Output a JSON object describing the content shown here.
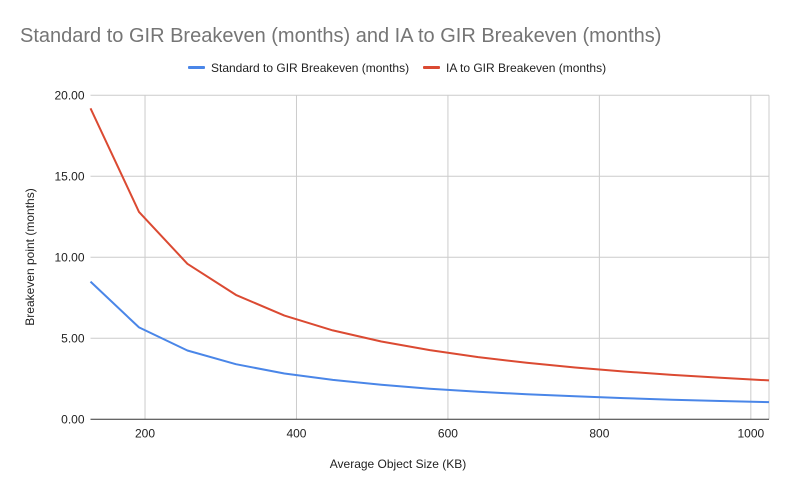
{
  "chart_data": {
    "type": "line",
    "title": "Standard to GIR Breakeven (months) and IA to GIR Breakeven (months)",
    "xlabel": "Average Object Size (KB)",
    "ylabel": "Breakeven point (months)",
    "xlim": [
      128,
      1024
    ],
    "ylim": [
      0,
      20
    ],
    "x_ticks": [
      200,
      400,
      600,
      800,
      1000
    ],
    "y_ticks": [
      "0.00",
      "5.00",
      "10.00",
      "15.00",
      "20.00"
    ],
    "grid": true,
    "legend_position": "top",
    "x": [
      128,
      192,
      256,
      320,
      384,
      448,
      512,
      576,
      640,
      704,
      768,
      832,
      896,
      960,
      1024
    ],
    "series": [
      {
        "name": "Standard to GIR Breakeven (months)",
        "color": "#4a86e8",
        "values": [
          8.5,
          5.67,
          4.25,
          3.4,
          2.83,
          2.43,
          2.13,
          1.89,
          1.7,
          1.55,
          1.42,
          1.31,
          1.21,
          1.13,
          1.06
        ]
      },
      {
        "name": "IA to GIR Breakeven (months)",
        "color": "#db4a32",
        "values": [
          19.2,
          12.8,
          9.6,
          7.68,
          6.4,
          5.49,
          4.8,
          4.27,
          3.84,
          3.49,
          3.2,
          2.95,
          2.74,
          2.56,
          2.4
        ]
      }
    ]
  }
}
